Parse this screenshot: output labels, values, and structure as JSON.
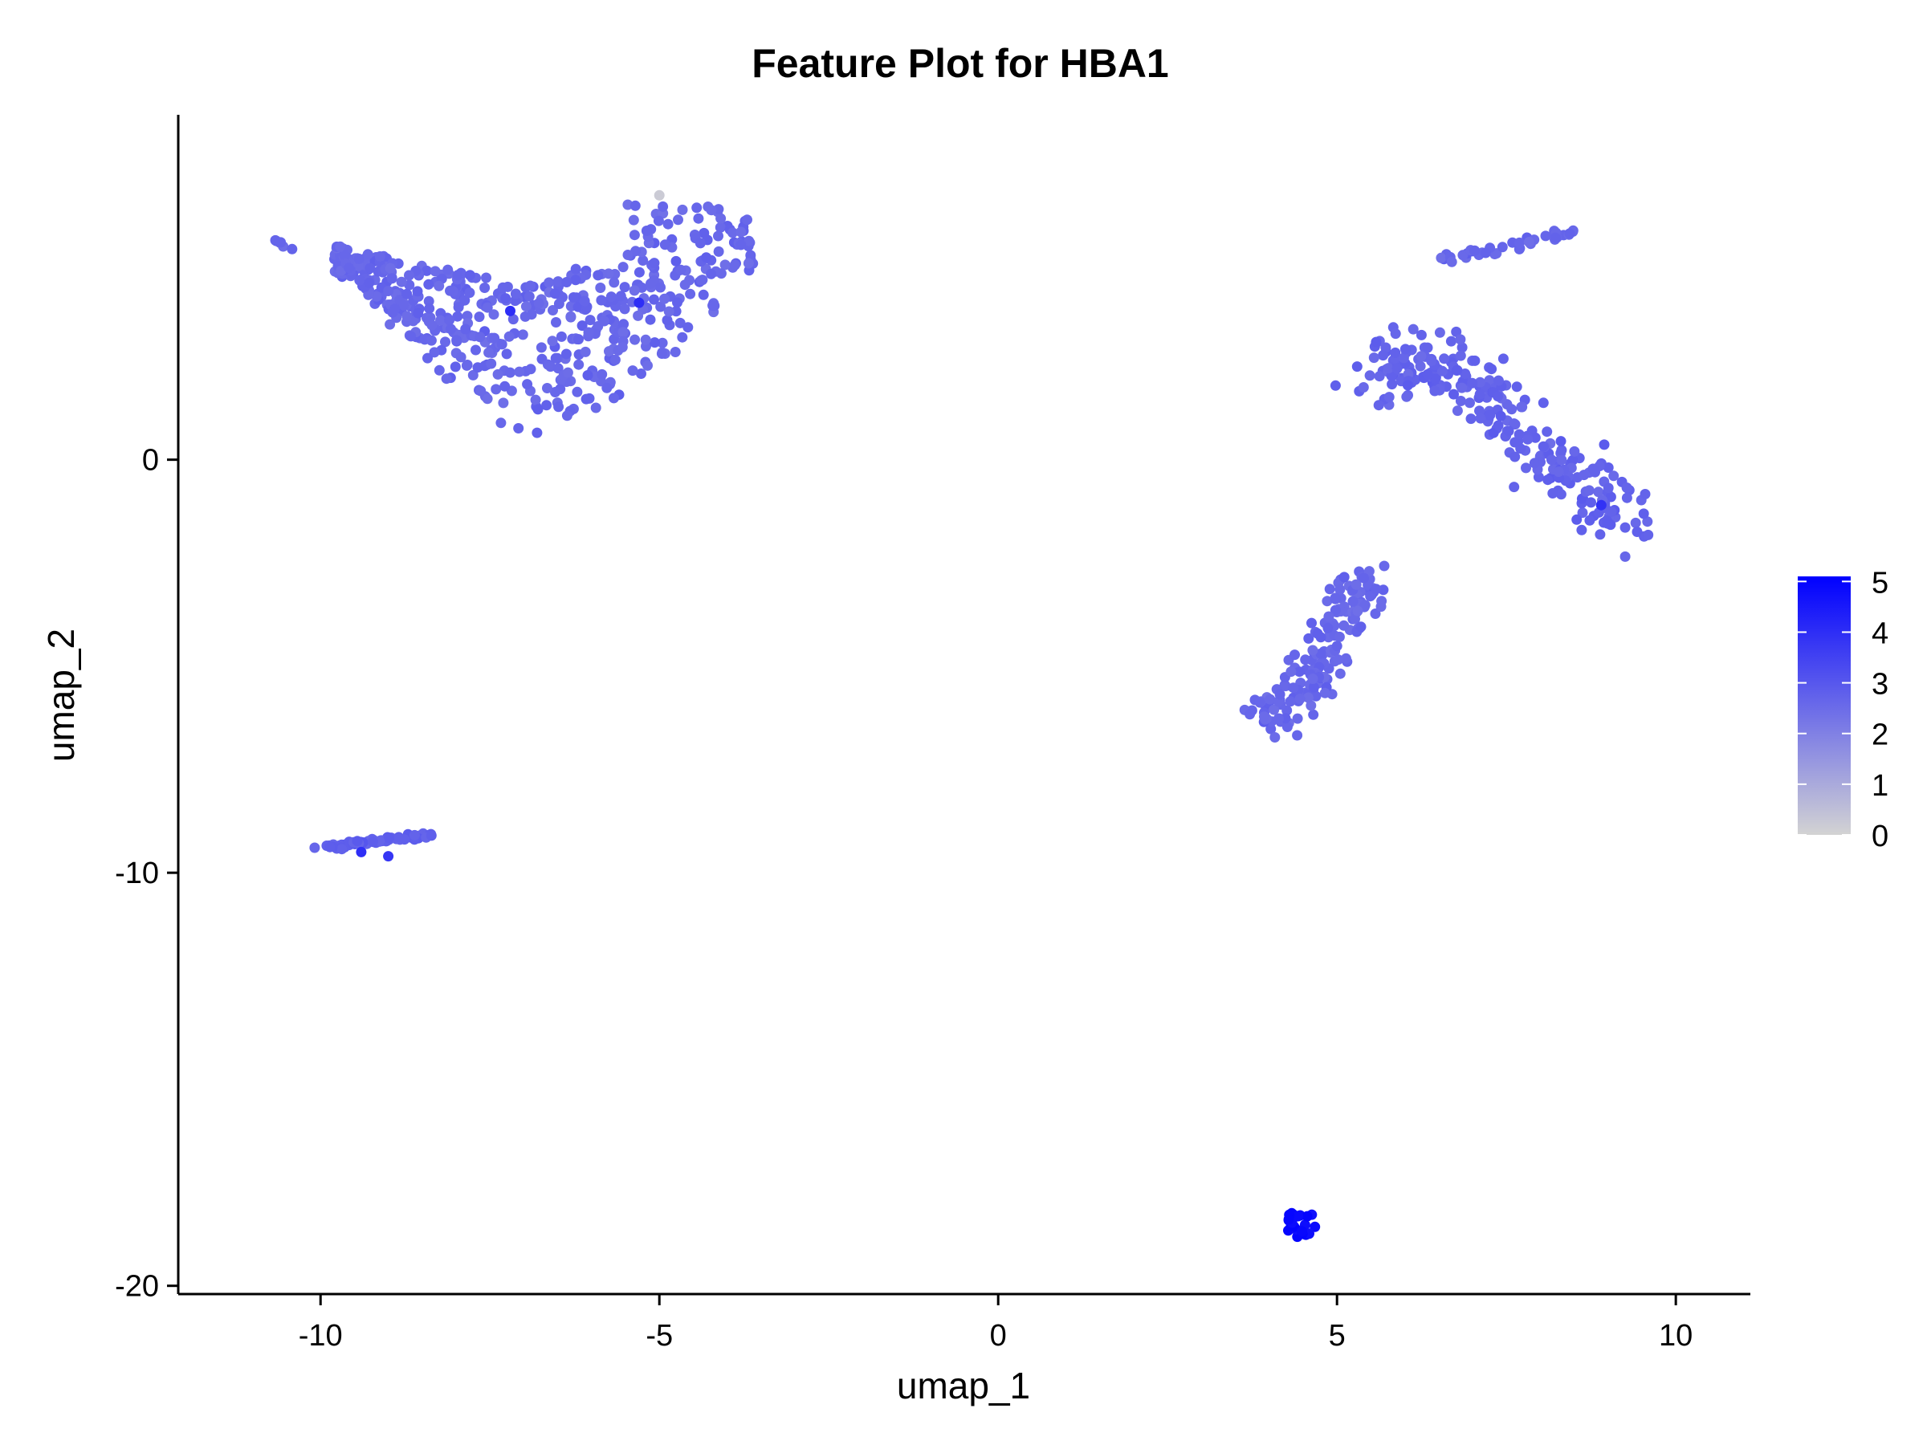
{
  "chart_data": {
    "type": "scatter",
    "title": "Feature Plot for HBA1",
    "xlabel": "umap_1",
    "ylabel": "umap_2",
    "xlim": [
      -12.1,
      11.1
    ],
    "ylim": [
      -20.2,
      8.35
    ],
    "x_ticks": [
      -10,
      -5,
      0,
      5,
      10
    ],
    "x_tick_labels": [
      "-10",
      "-5",
      "0",
      "5",
      "10"
    ],
    "y_ticks": [
      -20,
      -10,
      0
    ],
    "y_tick_labels": [
      "-20",
      "-10",
      "0"
    ],
    "grid": false,
    "legend": {
      "placement": "right",
      "type": "colorbar",
      "min": 0,
      "max": 5.1,
      "ticks": [
        0,
        1,
        2,
        3,
        4,
        5
      ],
      "tick_labels": [
        "0",
        "1",
        "2",
        "3",
        "4",
        "5"
      ],
      "low_color": "#d3d3d3",
      "high_color": "#0000ff"
    },
    "clusters": [
      {
        "id": "top-left-main",
        "n": 540,
        "shape": "arc",
        "x_range": [
          -9.8,
          -3.6
        ],
        "y_range": [
          0.0,
          6.5
        ],
        "value_mean": 2.6
      },
      {
        "id": "top-left-tail",
        "n": 6,
        "shape": "line",
        "points": [
          [
            -10.7,
            5.3
          ],
          [
            -10.4,
            5.1
          ]
        ],
        "value_mean": 2.6
      },
      {
        "id": "mid-left-streak",
        "n": 70,
        "shape": "line",
        "points": [
          [
            -10.0,
            -9.4
          ],
          [
            -8.3,
            -9.05
          ]
        ],
        "value_mean": 2.8
      },
      {
        "id": "right-top-streak",
        "n": 40,
        "shape": "line",
        "points": [
          [
            6.5,
            4.8
          ],
          [
            8.5,
            5.5
          ]
        ],
        "value_mean": 2.6
      },
      {
        "id": "right-main",
        "n": 260,
        "shape": "band",
        "points": [
          [
            5.5,
            2.2
          ],
          [
            6.5,
            2.3
          ],
          [
            7.5,
            1.0
          ],
          [
            8.5,
            -0.5
          ],
          [
            9.3,
            -1.5
          ]
        ],
        "value_mean": 2.7
      },
      {
        "id": "right-lower-arm",
        "n": 170,
        "shape": "band",
        "points": [
          [
            3.9,
            -6.4
          ],
          [
            4.5,
            -5.5
          ],
          [
            5.0,
            -4.0
          ],
          [
            5.5,
            -2.8
          ]
        ],
        "value_mean": 2.6
      },
      {
        "id": "bottom-knot",
        "n": 22,
        "shape": "blob",
        "center": [
          4.45,
          -18.5
        ],
        "value_mean": 4.9
      }
    ],
    "highlight_points": [
      {
        "x": -5.0,
        "y": 6.4,
        "value": 0.2
      },
      {
        "x": -7.2,
        "y": 3.6,
        "value": 4.0
      },
      {
        "x": -5.3,
        "y": 3.8,
        "value": 4.0
      },
      {
        "x": -9.4,
        "y": -9.5,
        "value": 4.0
      },
      {
        "x": -9.0,
        "y": -9.6,
        "value": 3.8
      },
      {
        "x": 8.9,
        "y": -1.1,
        "value": 3.9
      }
    ]
  }
}
